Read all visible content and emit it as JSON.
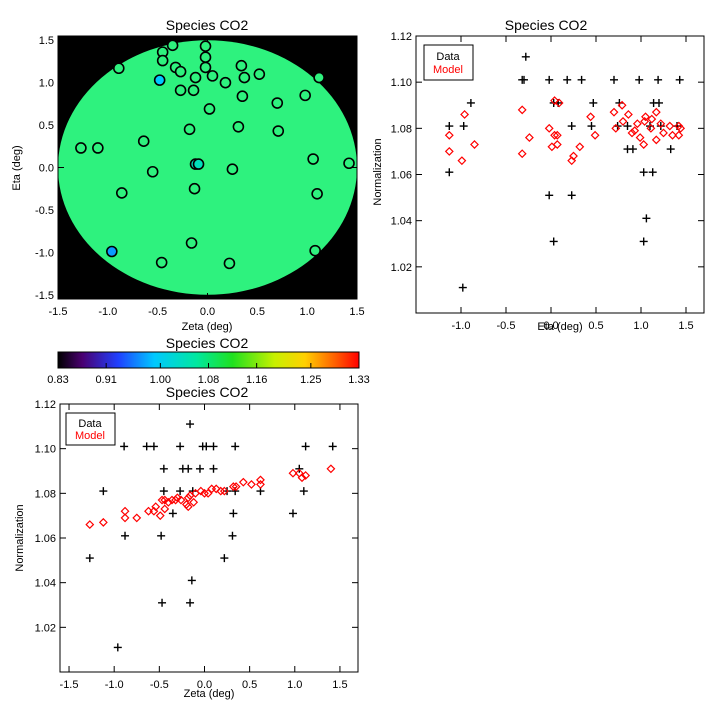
{
  "colors": {
    "axis": "#000000",
    "data": "#000000",
    "model": "#ff0000",
    "background": "#000000",
    "disk": "#2ef27e"
  },
  "chart_data": [
    {
      "id": "map",
      "type": "heatmap",
      "title": "Species CO2",
      "xlabel": "Zeta (deg)",
      "ylabel": "Eta (deg)",
      "xlim": [
        -1.5,
        1.5
      ],
      "ylim": [
        -1.55,
        1.55
      ],
      "xticks": [
        -1.5,
        -1.0,
        -0.5,
        0.0,
        0.5,
        1.0,
        1.5
      ],
      "yticks": [
        -1.5,
        -1.0,
        -0.5,
        0.0,
        0.5,
        1.0,
        1.5
      ],
      "disk_radius": 1.5,
      "disk_value": 1.08,
      "points": [
        {
          "x": -0.45,
          "y": 1.36,
          "v": 1.08
        },
        {
          "x": -0.35,
          "y": 1.44,
          "v": 1.08
        },
        {
          "x": -0.02,
          "y": 1.43,
          "v": 1.08
        },
        {
          "x": -0.89,
          "y": 1.17,
          "v": 1.08
        },
        {
          "x": -0.45,
          "y": 1.26,
          "v": 1.08
        },
        {
          "x": -0.02,
          "y": 1.3,
          "v": 1.08
        },
        {
          "x": -0.32,
          "y": 1.18,
          "v": 1.08
        },
        {
          "x": -0.27,
          "y": 1.13,
          "v": 1.08
        },
        {
          "x": -0.48,
          "y": 1.03,
          "v": 0.99
        },
        {
          "x": -0.02,
          "y": 1.18,
          "v": 1.08
        },
        {
          "x": 0.34,
          "y": 1.2,
          "v": 1.08
        },
        {
          "x": 0.05,
          "y": 1.08,
          "v": 1.08
        },
        {
          "x": -0.12,
          "y": 1.06,
          "v": 1.08
        },
        {
          "x": 0.18,
          "y": 1.0,
          "v": 1.08
        },
        {
          "x": 0.37,
          "y": 1.06,
          "v": 1.08
        },
        {
          "x": 0.52,
          "y": 1.1,
          "v": 1.08
        },
        {
          "x": -0.27,
          "y": 0.91,
          "v": 1.08
        },
        {
          "x": -0.14,
          "y": 0.91,
          "v": 1.08
        },
        {
          "x": 0.35,
          "y": 0.84,
          "v": 1.08
        },
        {
          "x": 1.12,
          "y": 1.06,
          "v": 1.08
        },
        {
          "x": 0.98,
          "y": 0.85,
          "v": 1.08
        },
        {
          "x": 0.7,
          "y": 0.76,
          "v": 1.08
        },
        {
          "x": 0.02,
          "y": 0.69,
          "v": 1.08
        },
        {
          "x": 0.71,
          "y": 0.43,
          "v": 1.08
        },
        {
          "x": -0.18,
          "y": 0.45,
          "v": 1.08
        },
        {
          "x": 0.31,
          "y": 0.48,
          "v": 1.08
        },
        {
          "x": -0.64,
          "y": 0.31,
          "v": 1.08
        },
        {
          "x": -1.27,
          "y": 0.23,
          "v": 1.08
        },
        {
          "x": -1.1,
          "y": 0.23,
          "v": 1.08
        },
        {
          "x": -0.55,
          "y": -0.05,
          "v": 1.08
        },
        {
          "x": -0.12,
          "y": 0.04,
          "v": 1.04
        },
        {
          "x": -0.09,
          "y": 0.04,
          "v": 1.04
        },
        {
          "x": 0.25,
          "y": -0.02,
          "v": 1.08
        },
        {
          "x": 1.06,
          "y": 0.1,
          "v": 1.08
        },
        {
          "x": 1.42,
          "y": 0.05,
          "v": 1.08
        },
        {
          "x": -0.86,
          "y": -0.3,
          "v": 1.08
        },
        {
          "x": -0.13,
          "y": -0.25,
          "v": 1.08
        },
        {
          "x": 1.1,
          "y": -0.31,
          "v": 1.08
        },
        {
          "x": -0.16,
          "y": -0.89,
          "v": 1.08
        },
        {
          "x": 1.08,
          "y": -0.98,
          "v": 1.08
        },
        {
          "x": -0.96,
          "y": -0.99,
          "v": 0.97
        },
        {
          "x": -0.46,
          "y": -1.12,
          "v": 1.08
        },
        {
          "x": 0.22,
          "y": -1.13,
          "v": 1.08
        }
      ]
    },
    {
      "id": "colorbar",
      "type": "colorbar",
      "title": "Species CO2",
      "range": [
        0.83,
        1.33
      ],
      "tick_labels": [
        "0.83",
        "0.91",
        "1.00",
        "1.08",
        "1.16",
        "1.25",
        "1.33"
      ],
      "tick_values": [
        0.83,
        0.91,
        1.0,
        1.08,
        1.16,
        1.25,
        1.33
      ]
    },
    {
      "id": "eta",
      "type": "scatter",
      "title": "Species CO2",
      "xlabel": "Eta (deg)",
      "ylabel": "Normalization",
      "xlim": [
        -1.5,
        1.7
      ],
      "ylim": [
        1.0,
        1.12
      ],
      "xticks": [
        -1.0,
        -0.5,
        0.0,
        0.5,
        1.0,
        1.5
      ],
      "xtick_labels": [
        "-1.0",
        "-0.5",
        "0.0",
        "0.5",
        "1.0",
        "1.5"
      ],
      "yticks": [
        1.02,
        1.04,
        1.06,
        1.08,
        1.1,
        1.12
      ],
      "ytick_labels": [
        "1.02",
        "1.04",
        "1.06",
        "1.08",
        "1.10",
        "1.12"
      ],
      "legend": [
        "Data",
        "Model"
      ],
      "series": [
        {
          "name": "Data",
          "marker": "plus",
          "points": [
            {
              "x": -0.28,
              "y": 1.111
            },
            {
              "x": -0.32,
              "y": 1.101
            },
            {
              "x": -0.3,
              "y": 1.101
            },
            {
              "x": -0.02,
              "y": 1.101
            },
            {
              "x": 0.18,
              "y": 1.101
            },
            {
              "x": 0.34,
              "y": 1.101
            },
            {
              "x": 0.7,
              "y": 1.101
            },
            {
              "x": 0.98,
              "y": 1.101
            },
            {
              "x": 1.19,
              "y": 1.101
            },
            {
              "x": 1.43,
              "y": 1.101
            },
            {
              "x": -0.89,
              "y": 1.091
            },
            {
              "x": 0.03,
              "y": 1.091
            },
            {
              "x": 0.08,
              "y": 1.091
            },
            {
              "x": 0.47,
              "y": 1.091
            },
            {
              "x": 0.76,
              "y": 1.091
            },
            {
              "x": 1.14,
              "y": 1.091
            },
            {
              "x": 1.2,
              "y": 1.091
            },
            {
              "x": -1.13,
              "y": 1.081
            },
            {
              "x": -0.97,
              "y": 1.081
            },
            {
              "x": 0.23,
              "y": 1.081
            },
            {
              "x": 0.45,
              "y": 1.081
            },
            {
              "x": 0.74,
              "y": 1.081
            },
            {
              "x": 0.85,
              "y": 1.081
            },
            {
              "x": 1.1,
              "y": 1.081
            },
            {
              "x": 1.22,
              "y": 1.081
            },
            {
              "x": 1.4,
              "y": 1.081
            },
            {
              "x": 0.85,
              "y": 1.071
            },
            {
              "x": 0.91,
              "y": 1.071
            },
            {
              "x": 1.33,
              "y": 1.071
            },
            {
              "x": -1.13,
              "y": 1.061
            },
            {
              "x": 1.03,
              "y": 1.061
            },
            {
              "x": 1.13,
              "y": 1.061
            },
            {
              "x": -0.02,
              "y": 1.051
            },
            {
              "x": 0.23,
              "y": 1.051
            },
            {
              "x": 1.06,
              "y": 1.041
            },
            {
              "x": 0.03,
              "y": 1.031
            },
            {
              "x": 1.03,
              "y": 1.031
            },
            {
              "x": -0.98,
              "y": 1.011
            }
          ]
        },
        {
          "name": "Model",
          "marker": "diamond",
          "points": [
            {
              "x": 0.04,
              "y": 1.092
            },
            {
              "x": 0.09,
              "y": 1.091
            },
            {
              "x": 0.79,
              "y": 1.09
            },
            {
              "x": -0.32,
              "y": 1.088
            },
            {
              "x": 0.7,
              "y": 1.087
            },
            {
              "x": 1.17,
              "y": 1.087
            },
            {
              "x": 0.86,
              "y": 1.086
            },
            {
              "x": -0.96,
              "y": 1.086
            },
            {
              "x": 0.44,
              "y": 1.085
            },
            {
              "x": 1.05,
              "y": 1.085
            },
            {
              "x": 1.12,
              "y": 1.084
            },
            {
              "x": 1.04,
              "y": 1.083
            },
            {
              "x": 0.8,
              "y": 1.083
            },
            {
              "x": 0.96,
              "y": 1.082
            },
            {
              "x": 1.22,
              "y": 1.082
            },
            {
              "x": 1.32,
              "y": 1.081
            },
            {
              "x": 1.42,
              "y": 1.081
            },
            {
              "x": 0.72,
              "y": 1.08
            },
            {
              "x": -0.02,
              "y": 1.08
            },
            {
              "x": 1.11,
              "y": 1.08
            },
            {
              "x": 0.93,
              "y": 1.079
            },
            {
              "x": 0.9,
              "y": 1.078
            },
            {
              "x": 1.25,
              "y": 1.078
            },
            {
              "x": 0.49,
              "y": 1.077
            },
            {
              "x": -1.13,
              "y": 1.077
            },
            {
              "x": 1.35,
              "y": 1.077
            },
            {
              "x": 1.42,
              "y": 1.077
            },
            {
              "x": 0.04,
              "y": 1.077
            },
            {
              "x": 0.07,
              "y": 1.077
            },
            {
              "x": 0.99,
              "y": 1.076
            },
            {
              "x": -0.24,
              "y": 1.076
            },
            {
              "x": 1.17,
              "y": 1.075
            },
            {
              "x": 0.07,
              "y": 1.073
            },
            {
              "x": 1.03,
              "y": 1.073
            },
            {
              "x": -0.85,
              "y": 1.073
            },
            {
              "x": 0.32,
              "y": 1.072
            },
            {
              "x": 0.01,
              "y": 1.072
            },
            {
              "x": -1.13,
              "y": 1.07
            },
            {
              "x": -0.32,
              "y": 1.069
            },
            {
              "x": 0.25,
              "y": 1.068
            },
            {
              "x": 0.23,
              "y": 1.066
            },
            {
              "x": -0.99,
              "y": 1.066
            },
            {
              "x": 1.44,
              "y": 1.08
            }
          ]
        }
      ]
    },
    {
      "id": "zeta",
      "type": "scatter",
      "title": "Species CO2",
      "xlabel": "Zeta (deg)",
      "ylabel": "Normalization",
      "xlim": [
        -1.6,
        1.7
      ],
      "ylim": [
        1.0,
        1.12
      ],
      "xticks": [
        -1.5,
        -1.0,
        -0.5,
        0.0,
        0.5,
        1.0,
        1.5
      ],
      "xtick_labels": [
        "-1.5",
        "-1.0",
        "-0.5",
        "0.0",
        "0.5",
        "1.0",
        "1.5"
      ],
      "yticks": [
        1.02,
        1.04,
        1.06,
        1.08,
        1.1,
        1.12
      ],
      "ytick_labels": [
        "1.02",
        "1.04",
        "1.06",
        "1.08",
        "1.10",
        "1.12"
      ],
      "legend": [
        "Data",
        "Model"
      ],
      "series": [
        {
          "name": "Data",
          "marker": "plus",
          "points": [
            {
              "x": -0.16,
              "y": 1.111
            },
            {
              "x": -0.89,
              "y": 1.101
            },
            {
              "x": -0.64,
              "y": 1.101
            },
            {
              "x": -0.56,
              "y": 1.101
            },
            {
              "x": -0.27,
              "y": 1.101
            },
            {
              "x": -0.02,
              "y": 1.101
            },
            {
              "x": 0.02,
              "y": 1.101
            },
            {
              "x": 0.1,
              "y": 1.101
            },
            {
              "x": 0.34,
              "y": 1.101
            },
            {
              "x": 1.12,
              "y": 1.101
            },
            {
              "x": 1.42,
              "y": 1.101
            },
            {
              "x": -0.45,
              "y": 1.091
            },
            {
              "x": -0.24,
              "y": 1.091
            },
            {
              "x": -0.18,
              "y": 1.091
            },
            {
              "x": -0.05,
              "y": 1.091
            },
            {
              "x": 0.1,
              "y": 1.091
            },
            {
              "x": 1.05,
              "y": 1.091
            },
            {
              "x": -1.12,
              "y": 1.081
            },
            {
              "x": -0.45,
              "y": 1.081
            },
            {
              "x": -0.27,
              "y": 1.081
            },
            {
              "x": -0.13,
              "y": 1.081
            },
            {
              "x": 0.25,
              "y": 1.081
            },
            {
              "x": 0.34,
              "y": 1.081
            },
            {
              "x": 0.62,
              "y": 1.081
            },
            {
              "x": 1.1,
              "y": 1.081
            },
            {
              "x": -0.35,
              "y": 1.071
            },
            {
              "x": 0.32,
              "y": 1.071
            },
            {
              "x": 0.98,
              "y": 1.071
            },
            {
              "x": -0.88,
              "y": 1.061
            },
            {
              "x": -0.48,
              "y": 1.061
            },
            {
              "x": 0.31,
              "y": 1.061
            },
            {
              "x": -1.27,
              "y": 1.051
            },
            {
              "x": 0.22,
              "y": 1.051
            },
            {
              "x": -0.14,
              "y": 1.041
            },
            {
              "x": -0.47,
              "y": 1.031
            },
            {
              "x": -0.16,
              "y": 1.031
            },
            {
              "x": -0.96,
              "y": 1.011
            }
          ]
        },
        {
          "name": "Model",
          "marker": "diamond",
          "points": [
            {
              "x": 1.4,
              "y": 1.091
            },
            {
              "x": 0.98,
              "y": 1.089
            },
            {
              "x": 1.05,
              "y": 1.089
            },
            {
              "x": 1.12,
              "y": 1.088
            },
            {
              "x": 1.08,
              "y": 1.087
            },
            {
              "x": 0.62,
              "y": 1.086
            },
            {
              "x": 0.43,
              "y": 1.085
            },
            {
              "x": 0.52,
              "y": 1.084
            },
            {
              "x": 0.62,
              "y": 1.084
            },
            {
              "x": 0.32,
              "y": 1.083
            },
            {
              "x": 0.35,
              "y": 1.083
            },
            {
              "x": 0.08,
              "y": 1.082
            },
            {
              "x": 0.13,
              "y": 1.082
            },
            {
              "x": 0.18,
              "y": 1.081
            },
            {
              "x": 0.22,
              "y": 1.081
            },
            {
              "x": -0.04,
              "y": 1.081
            },
            {
              "x": -0.1,
              "y": 1.08
            },
            {
              "x": 0.0,
              "y": 1.08
            },
            {
              "x": 0.04,
              "y": 1.08
            },
            {
              "x": -0.16,
              "y": 1.079
            },
            {
              "x": -0.3,
              "y": 1.078
            },
            {
              "x": -0.18,
              "y": 1.078
            },
            {
              "x": -0.36,
              "y": 1.077
            },
            {
              "x": -0.32,
              "y": 1.077
            },
            {
              "x": -0.26,
              "y": 1.077
            },
            {
              "x": -0.47,
              "y": 1.077
            },
            {
              "x": -0.44,
              "y": 1.077
            },
            {
              "x": -0.4,
              "y": 1.076
            },
            {
              "x": -0.12,
              "y": 1.076
            },
            {
              "x": -0.2,
              "y": 1.075
            },
            {
              "x": -0.18,
              "y": 1.074
            },
            {
              "x": -0.54,
              "y": 1.074
            },
            {
              "x": -0.44,
              "y": 1.073
            },
            {
              "x": -0.62,
              "y": 1.072
            },
            {
              "x": -0.56,
              "y": 1.072
            },
            {
              "x": -0.88,
              "y": 1.072
            },
            {
              "x": -0.49,
              "y": 1.07
            },
            {
              "x": -0.88,
              "y": 1.069
            },
            {
              "x": -0.75,
              "y": 1.069
            },
            {
              "x": -1.12,
              "y": 1.067
            },
            {
              "x": -1.27,
              "y": 1.066
            }
          ]
        }
      ]
    }
  ]
}
